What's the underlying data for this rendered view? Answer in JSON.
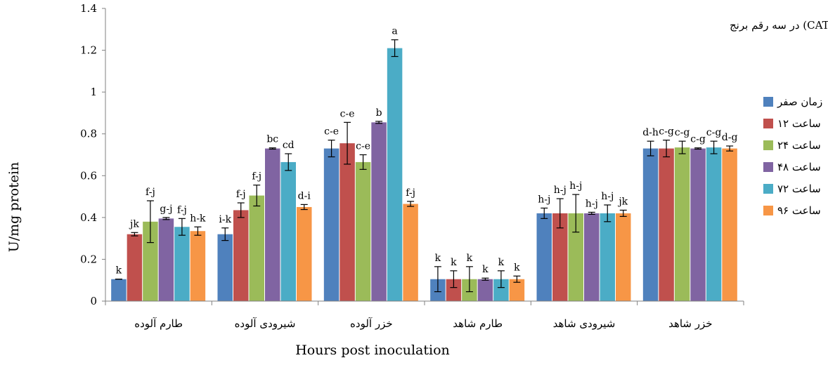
{
  "chart_data": {
    "type": "bar",
    "title": "تغییرات آنزیم کاتالاز (CAT) در سه رقم برنج",
    "xlabel": "Hours post inoculation",
    "ylabel": "U/mg protein",
    "ylim": [
      0,
      1.4
    ],
    "yticks": [
      "0",
      "0.2",
      "0.4",
      "0.6",
      "0.8",
      "1",
      "1.2",
      "1.4"
    ],
    "legend_position": "right",
    "categories": [
      "طارم آلوده",
      "شیرودی آلوده",
      "خزر آلوده",
      "طارم شاهد",
      "شیرودی شاهد",
      "خزر شاهد"
    ],
    "series": [
      {
        "name": "زمان صفر",
        "color": "#4F81BD",
        "values": [
          0.105,
          0.32,
          0.73,
          0.105,
          0.42,
          0.73
        ],
        "errors": [
          0.0,
          0.03,
          0.04,
          0.06,
          0.025,
          0.035
        ],
        "labels": [
          "k",
          "i-k",
          "c-e",
          "k",
          "h-j",
          "d-h"
        ]
      },
      {
        "name": "۱۲ ساعت",
        "color": "#C0504D",
        "values": [
          0.32,
          0.435,
          0.755,
          0.105,
          0.42,
          0.73
        ],
        "errors": [
          0.008,
          0.035,
          0.1,
          0.04,
          0.07,
          0.04
        ],
        "labels": [
          "jk",
          "f-j",
          "c-e",
          "k",
          "h-j",
          "c-g"
        ]
      },
      {
        "name": "۲۴ ساعت",
        "color": "#9BBB59",
        "values": [
          0.38,
          0.505,
          0.665,
          0.105,
          0.42,
          0.735
        ],
        "errors": [
          0.1,
          0.05,
          0.035,
          0.06,
          0.09,
          0.03
        ],
        "labels": [
          "f-j",
          "f-j",
          "c-e",
          "k",
          "h-j",
          "c-g"
        ]
      },
      {
        "name": "۴۸ ساعت",
        "color": "#8064A2",
        "values": [
          0.395,
          0.73,
          0.855,
          0.105,
          0.42,
          0.73
        ],
        "errors": [
          0.005,
          0.003,
          0.005,
          0.005,
          0.005,
          0.003
        ],
        "labels": [
          "g-j",
          "bc",
          "b",
          "k",
          "h-j",
          "c-g"
        ]
      },
      {
        "name": "۷۲ ساعت",
        "color": "#4BACC6",
        "values": [
          0.355,
          0.665,
          1.21,
          0.105,
          0.42,
          0.735
        ],
        "errors": [
          0.04,
          0.04,
          0.04,
          0.04,
          0.04,
          0.03
        ],
        "labels": [
          "f-j",
          "cd",
          "a",
          "k",
          "h-j",
          "c-g"
        ]
      },
      {
        "name": "۹۶ ساعت",
        "color": "#F79646",
        "values": [
          0.335,
          0.45,
          0.465,
          0.105,
          0.42,
          0.73
        ],
        "errors": [
          0.02,
          0.012,
          0.012,
          0.015,
          0.015,
          0.012
        ],
        "labels": [
          "h-k",
          "d-i",
          "f-j",
          "k",
          "jk",
          "d-g"
        ]
      }
    ]
  }
}
